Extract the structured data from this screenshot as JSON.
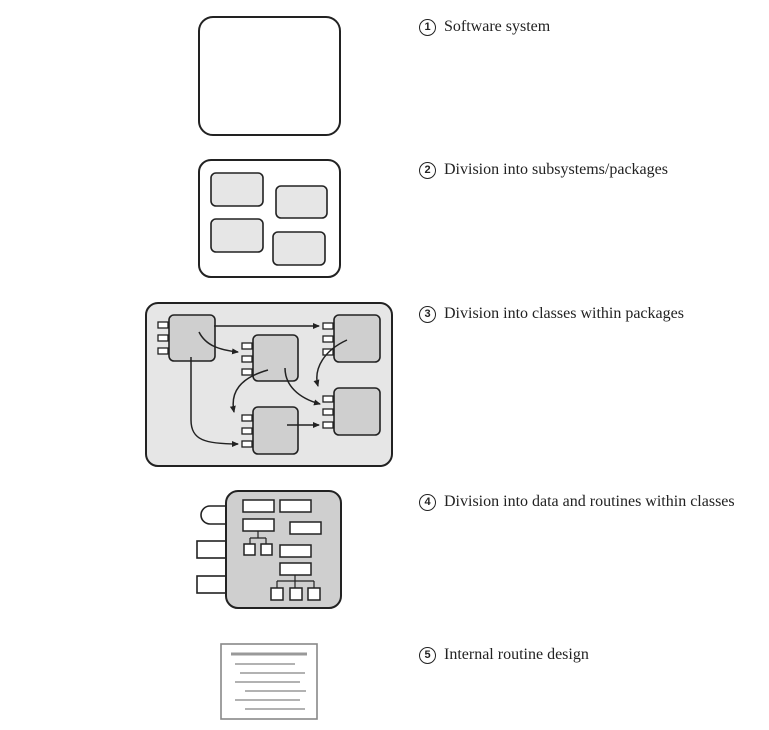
{
  "levels": [
    {
      "number": "1",
      "text": "Software system"
    },
    {
      "number": "2",
      "text": "Division into subsystems/packages"
    },
    {
      "number": "3",
      "text": "Division into classes within packages"
    },
    {
      "number": "4",
      "text": "Division into data and routines within classes"
    },
    {
      "number": "5",
      "text": "Internal routine design"
    }
  ],
  "colors": {
    "stroke": "#222222",
    "package_fill": "#e6e6e6",
    "class_fill": "#cfcfcf",
    "page_rule": "#999999"
  }
}
